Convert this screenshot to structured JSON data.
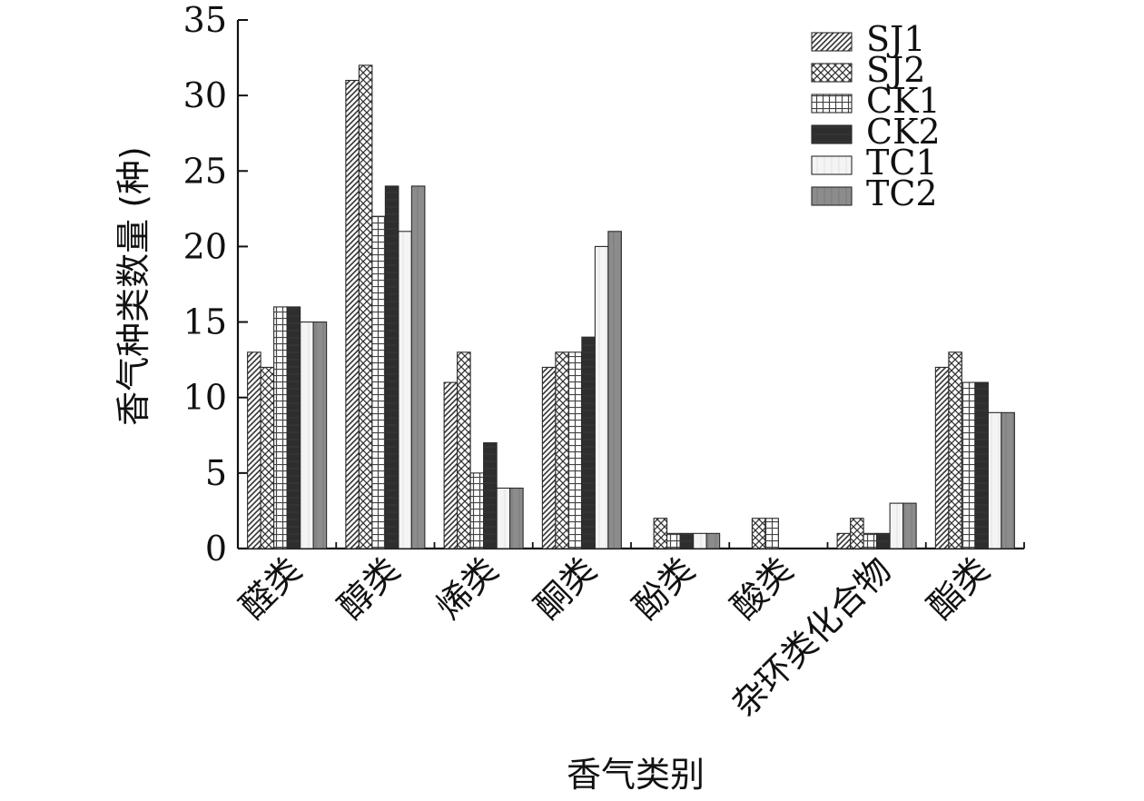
{
  "chart_data": {
    "type": "bar",
    "title": "",
    "xlabel": "香气类别",
    "ylabel": "香气种类数量 (种)",
    "ylim": [
      0,
      35
    ],
    "yticks": [
      0,
      5,
      10,
      15,
      20,
      25,
      30,
      35
    ],
    "grid": false,
    "legend_position": "top-right",
    "categories": [
      "醛类",
      "醇类",
      "烯类",
      "酮类",
      "酚类",
      "酸类",
      "杂环类化合物",
      "酯类"
    ],
    "series": [
      {
        "name": "SJ1",
        "values": [
          13,
          31,
          11,
          12,
          0,
          0,
          1,
          12
        ],
        "pattern": "diag-right",
        "color": "#4a4a4a"
      },
      {
        "name": "SJ2",
        "values": [
          12,
          32,
          13,
          13,
          2,
          2,
          2,
          13
        ],
        "pattern": "crosshatch",
        "color": "#4a4a4a"
      },
      {
        "name": "CK1",
        "values": [
          16,
          22,
          5,
          13,
          1,
          2,
          1,
          11
        ],
        "pattern": "grid",
        "color": "#4a4a4a"
      },
      {
        "name": "CK2",
        "values": [
          16,
          24,
          7,
          14,
          1,
          0,
          1,
          11
        ],
        "pattern": "solid-dark",
        "color": "#2e2e2e"
      },
      {
        "name": "TC1",
        "values": [
          15,
          21,
          4,
          20,
          1,
          0,
          3,
          9
        ],
        "pattern": "light",
        "color": "#f2f2f2"
      },
      {
        "name": "TC2",
        "values": [
          15,
          24,
          4,
          21,
          1,
          0,
          3,
          9
        ],
        "pattern": "solid-mid",
        "color": "#8c8c8c"
      }
    ]
  }
}
